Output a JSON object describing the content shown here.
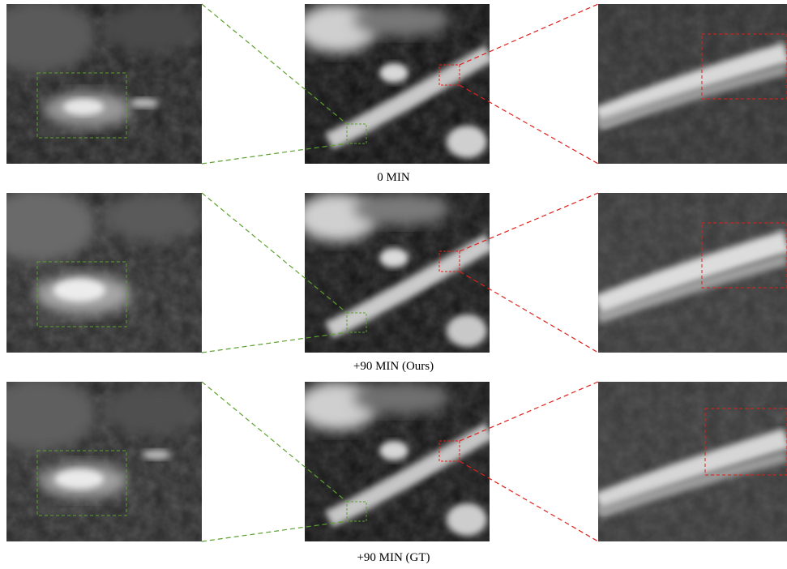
{
  "rows": [
    {
      "caption": "0 MIN"
    },
    {
      "caption": "+90 MIN (Ours)"
    },
    {
      "caption": "+90 MIN (GT)"
    }
  ],
  "colors": {
    "green_box": "#5aa02c",
    "red_box": "#e0201a"
  }
}
